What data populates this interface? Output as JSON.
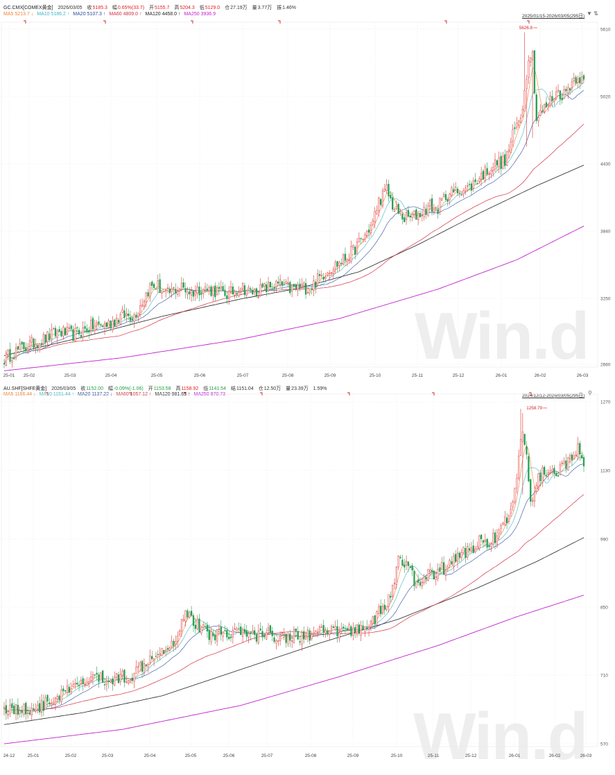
{
  "chart_data": [
    {
      "type": "candlestick",
      "header": {
        "symbol": "GC.CMX[COMEX黄金]",
        "date": "2026/03/05",
        "close_label": "收",
        "close": "5185.3",
        "chg_label": "幅",
        "chg": "0.65%(33.7)",
        "open_label": "开",
        "open": "5155.7",
        "high_label": "高",
        "high": "5204.3",
        "low_label": "低",
        "low": "5129.0",
        "oi_label": "仓",
        "oi": "27.19万",
        "vol_label": "量",
        "vol": "3.77万",
        "turn_label": "振",
        "turn": "1.46%"
      },
      "ma_legend": [
        {
          "label": "MA5 5213.7",
          "arrow": "↓",
          "color": "#f08030"
        },
        {
          "label": "MA10 5186.2",
          "arrow": "↑",
          "color": "#3cb4c8"
        },
        {
          "label": "MA20 5107.3",
          "arrow": "↑",
          "color": "#2c4a9c"
        },
        {
          "label": "MA60 4809.0",
          "arrow": "↑",
          "color": "#d03040"
        },
        {
          "label": "MA120 4458.0",
          "arrow": "↑",
          "color": "#222222"
        },
        {
          "label": "MA250 3936.9",
          "arrow": "",
          "color": "#c020d0"
        }
      ],
      "range_label": "2025/01/15-2026/03/05(295日)",
      "range_icons": "▼ ⇅",
      "peak_label": "5626.8",
      "x_ticks": [
        "25-01",
        "25-02",
        "25-03",
        "25-04",
        "25-05",
        "25-06",
        "25-07",
        "25-08",
        "25-09",
        "25-10",
        "25-11",
        "25-12",
        "26-01",
        "26-02",
        "26-03"
      ],
      "y_ticks": [
        "5610",
        "5020",
        "4430",
        "3840",
        "3250",
        "2660"
      ],
      "ylim": [
        2600,
        5680
      ],
      "anchors": [
        [
          0,
          2650
        ],
        [
          10,
          2760
        ],
        [
          20,
          2830
        ],
        [
          28,
          2900
        ],
        [
          35,
          2870
        ],
        [
          45,
          2950
        ],
        [
          53,
          2970
        ],
        [
          60,
          3050
        ],
        [
          66,
          3050
        ],
        [
          70,
          3180
        ],
        [
          74,
          3310
        ],
        [
          78,
          3320
        ],
        [
          82,
          3230
        ],
        [
          86,
          3280
        ],
        [
          90,
          3310
        ],
        [
          95,
          3260
        ],
        [
          100,
          3300
        ],
        [
          108,
          3270
        ],
        [
          114,
          3240
        ],
        [
          120,
          3320
        ],
        [
          125,
          3260
        ],
        [
          130,
          3280
        ],
        [
          136,
          3320
        ],
        [
          140,
          3330
        ],
        [
          145,
          3290
        ],
        [
          150,
          3310
        ],
        [
          155,
          3300
        ],
        [
          160,
          3400
        ],
        [
          165,
          3480
        ],
        [
          170,
          3530
        ],
        [
          176,
          3620
        ],
        [
          182,
          3760
        ],
        [
          187,
          3900
        ],
        [
          190,
          4100
        ],
        [
          194,
          4200
        ],
        [
          198,
          4020
        ],
        [
          203,
          3940
        ],
        [
          208,
          3960
        ],
        [
          212,
          4000
        ],
        [
          216,
          4060
        ],
        [
          219,
          4010
        ],
        [
          224,
          4150
        ],
        [
          228,
          4180
        ],
        [
          232,
          4210
        ],
        [
          236,
          4220
        ],
        [
          240,
          4300
        ],
        [
          246,
          4400
        ],
        [
          250,
          4450
        ],
        [
          254,
          4460
        ],
        [
          258,
          4700
        ],
        [
          262,
          4900
        ],
        [
          264,
          5100
        ],
        [
          266,
          5450
        ],
        [
          268,
          5450
        ],
        [
          270,
          4850
        ],
        [
          272,
          4900
        ],
        [
          276,
          5000
        ],
        [
          280,
          5100
        ],
        [
          284,
          5080
        ],
        [
          288,
          5200
        ],
        [
          291,
          5260
        ],
        [
          294,
          5185
        ]
      ],
      "ma120_anchors": [
        [
          0,
          2680
        ],
        [
          40,
          2850
        ],
        [
          80,
          3040
        ],
        [
          120,
          3200
        ],
        [
          150,
          3300
        ],
        [
          180,
          3450
        ],
        [
          210,
          3700
        ],
        [
          240,
          3980
        ],
        [
          270,
          4240
        ],
        [
          294,
          4430
        ]
      ],
      "ma250_anchors": [
        [
          0,
          2540
        ],
        [
          60,
          2660
        ],
        [
          120,
          2830
        ],
        [
          170,
          3020
        ],
        [
          220,
          3290
        ],
        [
          260,
          3560
        ],
        [
          294,
          3870
        ]
      ]
    },
    {
      "type": "candlestick",
      "header": {
        "symbol": "AU.SHF[SHFE黄金]",
        "date": "2026/03/05",
        "close_label": "收",
        "close": "1152.00",
        "chg_label": "幅",
        "chg": "-0.09%(-1.06)",
        "open_label": "开",
        "open": "1153.58",
        "high_label": "高",
        "high": "1158.92",
        "low_label": "低",
        "low": "1141.54",
        "oi_label": "结",
        "oi": "1151.04",
        "vol_label": "仓",
        "vol": "12.50万",
        "turn_label": "量",
        "turn": "23.39万",
        "extra": "1.59%"
      },
      "ma_legend": [
        {
          "label": "MA5 1166.44",
          "arrow": "↓",
          "color": "#f08030"
        },
        {
          "label": "MA10 1151.44",
          "arrow": "↑",
          "color": "#3cb4c8"
        },
        {
          "label": "MA20 1137.22",
          "arrow": "↓",
          "color": "#2c4a9c"
        },
        {
          "label": "MA60 1057.12",
          "arrow": "↑",
          "color": "#d03040"
        },
        {
          "label": "MA120 981.65",
          "arrow": "↑",
          "color": "#222222"
        },
        {
          "label": "MA250 870.73",
          "arrow": "",
          "color": "#c020d0"
        }
      ],
      "range_label": "2024/12/12-2026/03/05(295日)",
      "range_icons": "⚲",
      "peak_label": "1258.79",
      "x_ticks": [
        "24-12",
        "25-01",
        "25-02",
        "25-03",
        "25-04",
        "25-05",
        "25-06",
        "25-07",
        "25-08",
        "25-09",
        "25-10",
        "25-11",
        "25-12",
        "26-01",
        "26-02",
        "26-03"
      ],
      "y_ticks": [
        "1270",
        "1130",
        "990",
        "850",
        "710",
        "570"
      ],
      "ylim": [
        560,
        1275
      ],
      "anchors": [
        [
          0,
          635
        ],
        [
          10,
          630
        ],
        [
          20,
          640
        ],
        [
          30,
          665
        ],
        [
          38,
          680
        ],
        [
          45,
          700
        ],
        [
          52,
          690
        ],
        [
          60,
          700
        ],
        [
          66,
          705
        ],
        [
          72,
          735
        ],
        [
          78,
          755
        ],
        [
          86,
          770
        ],
        [
          92,
          840
        ],
        [
          97,
          810
        ],
        [
          103,
          790
        ],
        [
          110,
          790
        ],
        [
          118,
          795
        ],
        [
          125,
          785
        ],
        [
          132,
          790
        ],
        [
          140,
          785
        ],
        [
          150,
          785
        ],
        [
          160,
          790
        ],
        [
          170,
          795
        ],
        [
          180,
          800
        ],
        [
          186,
          815
        ],
        [
          192,
          840
        ],
        [
          196,
          870
        ],
        [
          200,
          940
        ],
        [
          204,
          935
        ],
        [
          208,
          900
        ],
        [
          212,
          905
        ],
        [
          218,
          915
        ],
        [
          224,
          930
        ],
        [
          230,
          950
        ],
        [
          236,
          965
        ],
        [
          241,
          980
        ],
        [
          247,
          985
        ],
        [
          252,
          1005
        ],
        [
          256,
          1035
        ],
        [
          260,
          1110
        ],
        [
          263,
          1220
        ],
        [
          265,
          1160
        ],
        [
          267,
          1060
        ],
        [
          270,
          1110
        ],
        [
          275,
          1130
        ],
        [
          280,
          1120
        ],
        [
          284,
          1140
        ],
        [
          288,
          1150
        ],
        [
          291,
          1190
        ],
        [
          294,
          1152
        ]
      ],
      "ma120_anchors": [
        [
          0,
          600
        ],
        [
          40,
          625
        ],
        [
          80,
          660
        ],
        [
          120,
          715
        ],
        [
          160,
          770
        ],
        [
          200,
          820
        ],
        [
          240,
          885
        ],
        [
          270,
          940
        ],
        [
          294,
          990
        ]
      ],
      "ma250_anchors": [
        [
          0,
          560
        ],
        [
          60,
          590
        ],
        [
          120,
          640
        ],
        [
          170,
          700
        ],
        [
          220,
          765
        ],
        [
          260,
          825
        ],
        [
          294,
          870
        ]
      ]
    }
  ]
}
